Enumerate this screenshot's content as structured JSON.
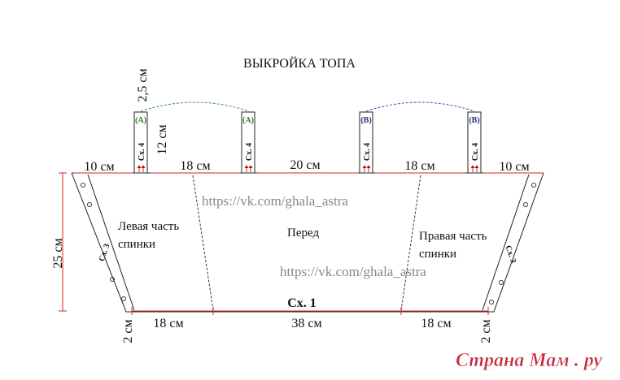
{
  "title": "ВЫКРОЙКА ТОПА",
  "strap_dimensions": {
    "width": "2,5 см",
    "height": "12 см"
  },
  "straps": [
    {
      "label": "(A)",
      "scheme": "Сх. 4"
    },
    {
      "label": "(A)",
      "scheme": "Сх. 4"
    },
    {
      "label": "(B)",
      "scheme": "Сх. 4"
    },
    {
      "label": "(B)",
      "scheme": "Сх. 4"
    }
  ],
  "top_measurements": [
    "10 см",
    "18 см",
    "20 см",
    "18 см",
    "10 см"
  ],
  "height": "25 см",
  "pieces": [
    "Левая часть спинки",
    "Перед",
    "Правая часть спинки"
  ],
  "watermarks": [
    "https://vk.com/ghala_astra",
    "https://vk.com/ghala_astra"
  ],
  "side_schemes": [
    "Сх. 3",
    "Сх. 3"
  ],
  "bottom_scheme": "Сх. 1",
  "bottom_measurements": [
    "2 см",
    "18 см",
    "38 см",
    "18 см",
    "2 см"
  ],
  "logo": "Страна Мам . ру"
}
